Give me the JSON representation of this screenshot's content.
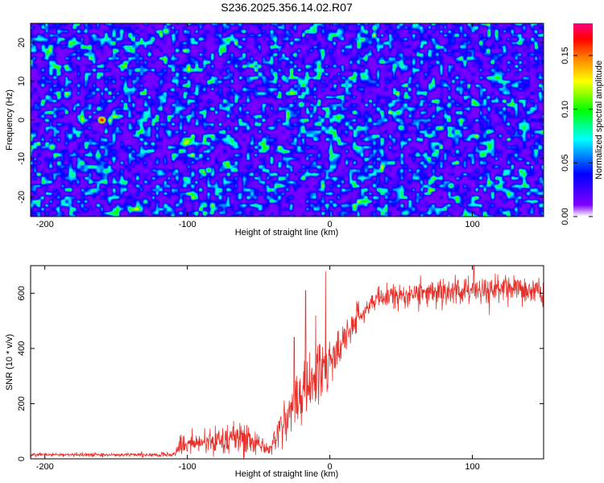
{
  "title": "S236.2025.356.14.02.R07",
  "chart_data": [
    {
      "type": "heatmap",
      "xlabel": "Height of straight line (km)",
      "ylabel": "Frequency (Hz)",
      "xlim": [
        -210,
        150
      ],
      "ylim": [
        -25,
        25
      ],
      "x_ticks": [
        -200,
        -100,
        0,
        100
      ],
      "y_ticks": [
        -20,
        -10,
        0,
        10,
        20
      ],
      "colorbar": {
        "label": "Normalized spectral amplitude",
        "range": [
          0,
          0.18
        ],
        "ticks": [
          "0.00",
          "0.05",
          "0.10",
          "0.15"
        ],
        "tick_values": [
          0,
          0.05,
          0.1,
          0.15
        ],
        "colormap": [
          "#ffffff",
          "#8000ff",
          "#0000ff",
          "#00ffff",
          "#00ff00",
          "#ffff00",
          "#ff8000",
          "#ff0000",
          "#ff0080"
        ]
      },
      "description_values": {
        "background_level": 0.01,
        "typical_peak_level": 0.07,
        "max_peak_level": 0.16
      }
    },
    {
      "type": "line",
      "xlabel": "Height of straight line (km)",
      "ylabel": "SNR (10 * v/v)",
      "xlim": [
        -210,
        150
      ],
      "ylim": [
        0,
        700
      ],
      "x_ticks": [
        -200,
        -100,
        0,
        100
      ],
      "y_ticks": [
        0,
        200,
        400,
        600
      ],
      "series": [
        {
          "name": "SNR",
          "color": "#e8302a",
          "anchors_x": [
            -210,
            -110,
            -105,
            -95,
            -80,
            -65,
            -55,
            -42,
            -40,
            -35,
            -30,
            -25,
            -20,
            -15,
            -10,
            -5,
            0,
            5,
            10,
            15,
            20,
            25,
            30,
            40,
            50,
            60,
            80,
            100,
            120,
            150
          ],
          "anchors_mean": [
            15,
            15,
            45,
            55,
            65,
            80,
            70,
            30,
            60,
            110,
            160,
            200,
            230,
            270,
            300,
            330,
            350,
            390,
            430,
            470,
            520,
            550,
            570,
            585,
            595,
            600,
            605,
            610,
            610,
            610
          ],
          "anchors_noise": [
            6,
            6,
            30,
            30,
            45,
            55,
            40,
            15,
            35,
            60,
            60,
            80,
            90,
            90,
            80,
            80,
            80,
            70,
            60,
            50,
            40,
            40,
            35,
            35,
            35,
            40,
            40,
            45,
            45,
            40
          ],
          "spikes": [
            {
              "x": -17,
              "y": 610
            },
            {
              "x": -3,
              "y": 680
            },
            {
              "x": 101,
              "y": 700
            },
            {
              "x": -25,
              "y": 440
            },
            {
              "x": -10,
              "y": 520
            }
          ]
        }
      ]
    }
  ]
}
